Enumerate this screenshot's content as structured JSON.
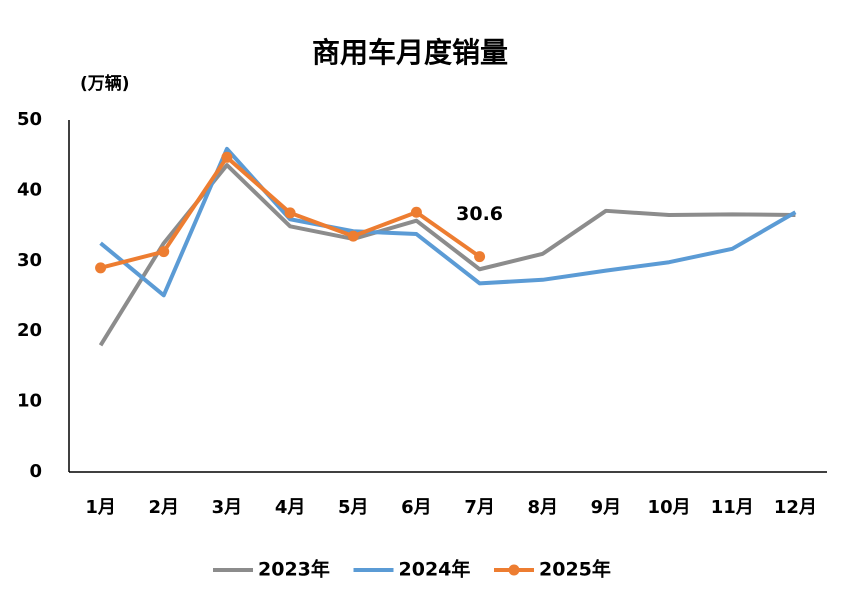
{
  "chart_data": {
    "type": "line",
    "title": "商用车月度销量",
    "y_label": "(万辆)",
    "categories": [
      "1月",
      "2月",
      "3月",
      "4月",
      "5月",
      "6月",
      "7月",
      "8月",
      "9月",
      "10月",
      "11月",
      "12月"
    ],
    "series": [
      {
        "name": "2023年",
        "color": "#8c8c8c",
        "marker": false,
        "values": [
          18.0,
          32.5,
          43.6,
          34.9,
          33.1,
          35.7,
          28.8,
          31.0,
          37.1,
          36.5,
          36.6,
          36.5
        ]
      },
      {
        "name": "2024年",
        "color": "#5b9bd5",
        "marker": false,
        "values": [
          32.5,
          25.1,
          45.9,
          35.9,
          34.2,
          33.8,
          26.8,
          27.3,
          28.6,
          29.8,
          31.7,
          36.9
        ]
      },
      {
        "name": "2025年",
        "color": "#ed7d31",
        "marker": true,
        "values": [
          29.0,
          31.3,
          44.7,
          36.8,
          33.5,
          36.9,
          30.6,
          null,
          null,
          null,
          null,
          null
        ],
        "value_labels": [
          null,
          null,
          null,
          null,
          null,
          null,
          "30.6",
          null,
          null,
          null,
          null,
          null
        ]
      }
    ],
    "ylim": [
      0,
      50
    ],
    "yticks": [
      0,
      10,
      20,
      30,
      40,
      50
    ],
    "grid": false,
    "legend": "bottom"
  }
}
